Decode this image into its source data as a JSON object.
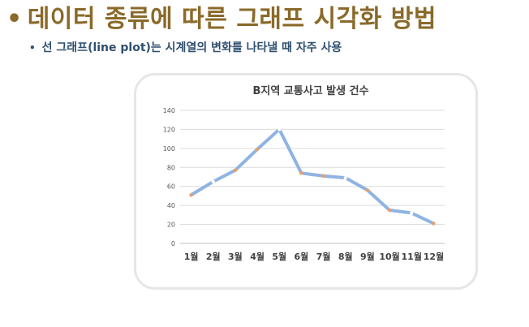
{
  "slide": {
    "bullet": "•",
    "title": "데이터 종류에 따른 그래프 시각화 방법",
    "sub_bullet": "•",
    "subtitle": "선 그래프(line plot)는 시계열의 변화를 나타낼 때 자주 사용"
  },
  "chart_data": {
    "type": "line",
    "title": "B지역 교통사고 발생 건수",
    "categories": [
      "1월",
      "2월",
      "3월",
      "4월",
      "5월",
      "6월",
      "7월",
      "8월",
      "9월",
      "10월",
      "11월",
      "12월"
    ],
    "series": [
      {
        "values": [
          51,
          65,
          77,
          99,
          120,
          74,
          71,
          69,
          56,
          35,
          32,
          21
        ]
      }
    ],
    "ylim": [
      0,
      140
    ],
    "yticks": [
      0,
      20,
      40,
      60,
      80,
      100,
      120,
      140
    ],
    "grid": true,
    "line_color": "#8fb4e3",
    "marker_color": "#e5a070"
  }
}
